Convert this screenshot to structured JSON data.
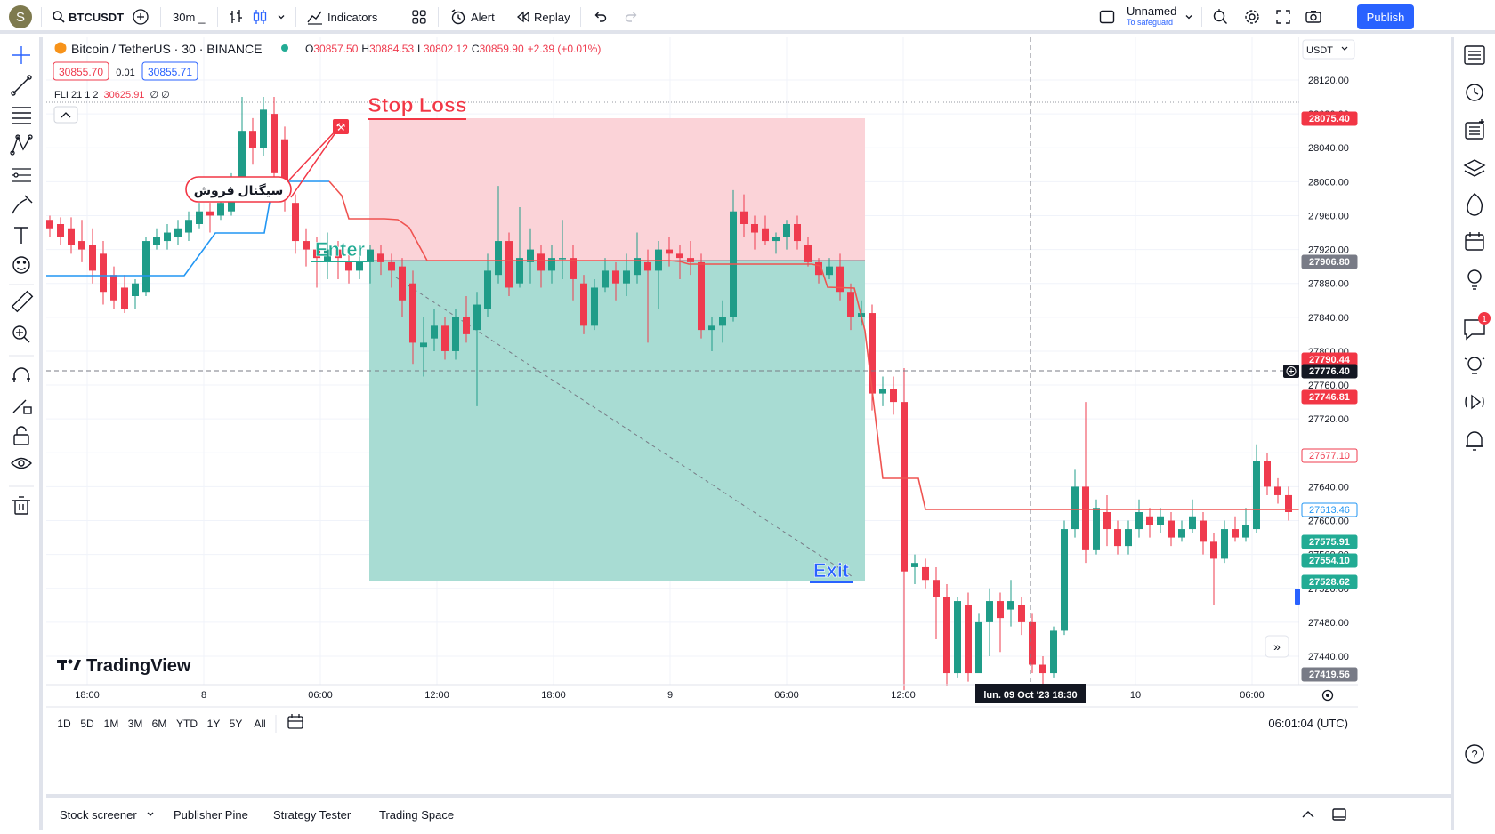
{
  "toolbar": {
    "avatar_letter": "S",
    "symbol": "BTCUSDT",
    "interval": "30m",
    "indicators": "Indicators",
    "alert": "Alert",
    "replay": "Replay",
    "layout_name": "Unnamed",
    "layout_sub": "To safeguard",
    "publish": "Publish"
  },
  "legend": {
    "title": "Bitcoin / TetherUS · 30 · BINANCE",
    "o_label": "O",
    "o": "30857.50",
    "h_label": "H",
    "h": "30884.53",
    "l_label": "L",
    "l": "30802.12",
    "c_label": "C",
    "c": "30859.90",
    "change": "+2.39 (+0.01%)",
    "sell_price": "30855.70",
    "spread": "0.01",
    "buy_price": "30855.71",
    "indicator_name": "FLI 21 1 2",
    "indicator_value": "30625.91",
    "indicator_extra": "∅ ∅"
  },
  "annotations": {
    "stop_loss": "Stop Loss",
    "enter": "Enter",
    "exit": "Exit",
    "sell_signal": "سیگنال فروش"
  },
  "watermark": "TradingView",
  "price_axis": {
    "currency": "USDT",
    "ticks": [
      "28120.00",
      "28080.00",
      "28040.00",
      "28000.00",
      "27960.00",
      "27920.00",
      "27880.00",
      "27840.00",
      "27800.00",
      "27760.00",
      "27720.00",
      "27680.00",
      "27640.00",
      "27600.00",
      "27560.00",
      "27520.00",
      "27480.00",
      "27440.00"
    ],
    "labels": {
      "stop": "28075.40",
      "entry": "27906.80",
      "red1": "27790.44",
      "crosshair": "27776.40",
      "red2": "27746.81",
      "current": "27677.10",
      "blue": "27613.46",
      "g1": "27575.91",
      "g2": "27554.10",
      "target": "27528.62",
      "low": "27419.56"
    }
  },
  "time_axis": {
    "ticks": [
      "18:00",
      "8",
      "06:00",
      "12:00",
      "18:00",
      "9",
      "06:00",
      "12:00",
      "10",
      "06:00"
    ],
    "crosshair": "lun. 09 Oct '23   18:30"
  },
  "ranges": [
    "1D",
    "5D",
    "1M",
    "3M",
    "6M",
    "YTD",
    "1Y",
    "5Y",
    "All"
  ],
  "clock": "06:01:04 (UTC)",
  "bottom_tabs": [
    "Stock screener",
    "Publisher Pine",
    "Strategy Tester",
    "Trading Space"
  ],
  "notification_count": "1",
  "colors": {
    "up": "#1f9c88",
    "down": "#ef3b4e",
    "accent": "#2962ff",
    "stop_zone": "#fbd3d8",
    "target_zone": "#a8dcd3"
  }
}
